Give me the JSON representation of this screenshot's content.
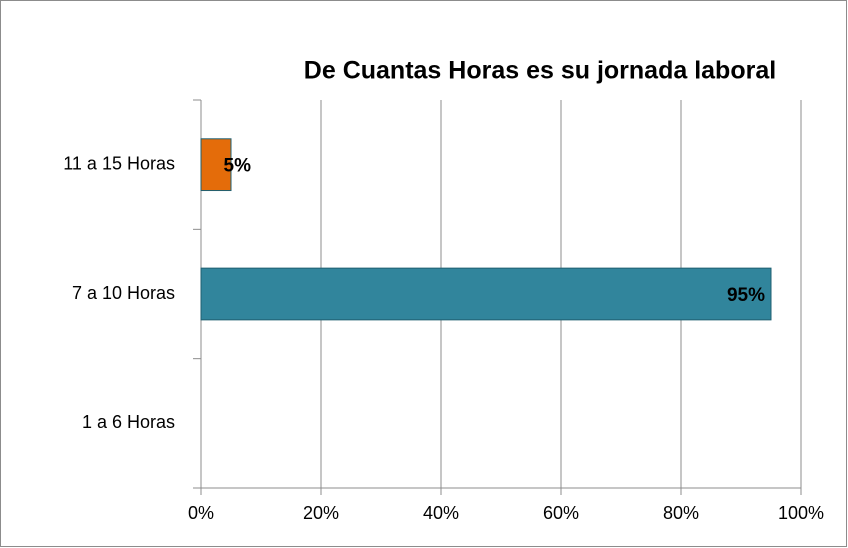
{
  "chart_data": {
    "type": "hbar",
    "title": "De Cuantas Horas es su jornada laboral",
    "categories": [
      "1 a 6 Horas",
      "7 a 10 Horas",
      "11 a 15 Horas"
    ],
    "values": [
      null,
      95,
      5
    ],
    "value_labels": [
      null,
      "95%",
      "5%"
    ],
    "colors": [
      null,
      "#31859c",
      "#e46c0a"
    ],
    "xlim": [
      0,
      100
    ],
    "xticks": [
      {
        "value": 0,
        "label": "0%"
      },
      {
        "value": 20,
        "label": "20%"
      },
      {
        "value": 40,
        "label": "40%"
      },
      {
        "value": 60,
        "label": "60%"
      },
      {
        "value": 80,
        "label": "80%"
      },
      {
        "value": 100,
        "label": "100%"
      }
    ],
    "grid": true
  }
}
